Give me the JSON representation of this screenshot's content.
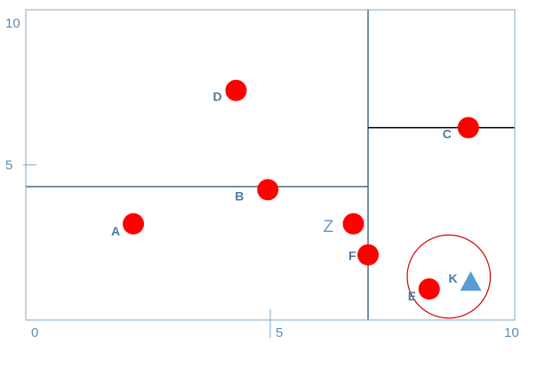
{
  "diagram": {
    "x_range": [
      0,
      10
    ],
    "y_range": [
      0,
      10
    ],
    "x_ticks": [
      {
        "value": 0,
        "label": "0"
      },
      {
        "value": 5,
        "label": "5"
      },
      {
        "value": 10,
        "label": "10"
      }
    ],
    "y_ticks": [
      {
        "value": 5,
        "label": "5"
      },
      {
        "value": 10,
        "label": "10"
      }
    ],
    "colors": {
      "frame": "#7fa7c9",
      "split_line": "#3f5f77",
      "point": "#ff0000",
      "query": "#5b9bd5",
      "circle": "#d40000"
    },
    "split_lines": [
      {
        "kind": "vertical",
        "x": 7,
        "y_from": 0,
        "y_to": 10
      },
      {
        "kind": "horizontal",
        "y": 4.3,
        "x_from": 0,
        "x_to": 7
      },
      {
        "kind": "horizontal",
        "y": 6.2,
        "x_from": 7,
        "x_to": 10
      }
    ],
    "points": [
      {
        "label": "A",
        "x": 2.2,
        "y": 3.1,
        "label_side": "left"
      },
      {
        "label": "B",
        "x": 4.95,
        "y": 4.2,
        "label_side": "left"
      },
      {
        "label": "C",
        "x": 9.05,
        "y": 6.2,
        "label_side": "left"
      },
      {
        "label": "D",
        "x": 4.3,
        "y": 7.4,
        "label_side": "left"
      },
      {
        "label": "E",
        "x": 8.25,
        "y": 1.0,
        "label_side": "left-below"
      },
      {
        "label": "F",
        "x": 7.0,
        "y": 2.1,
        "label_side": "left"
      },
      {
        "label": "Z",
        "x": 6.7,
        "y": 3.1,
        "label_side": "left",
        "style": "plain"
      }
    ],
    "query_point": {
      "label": "K",
      "x": 9.1,
      "y": 1.2,
      "shape": "triangle"
    },
    "search_circle": {
      "cx": 8.65,
      "cy": 1.4,
      "r": 0.85
    }
  }
}
